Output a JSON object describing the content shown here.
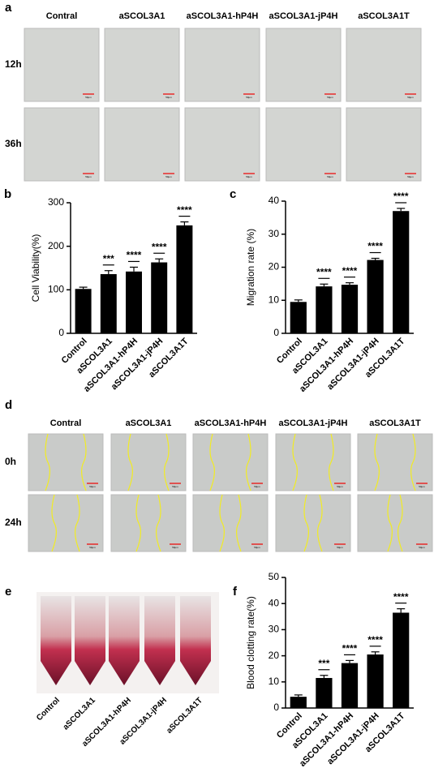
{
  "figure": {
    "panel_a": {
      "label": "a",
      "columns": [
        "Contral",
        "aSCOL3A1",
        "aSCOL3A1-hP4H",
        "aSCOL3A1-jP4H",
        "aSCOL3A1T"
      ],
      "rows": [
        "12h",
        "36h"
      ],
      "scale_bar": "50μm"
    },
    "panel_d": {
      "label": "d",
      "columns": [
        "Contral",
        "aSCOL3A1",
        "aSCOL3A1-hP4H",
        "aSCOL3A1-jP4H",
        "aSCOL3A1T"
      ],
      "rows": [
        "0h",
        "24h"
      ],
      "scale_bar": "50μm"
    },
    "panel_e": {
      "label": "e",
      "categories": [
        "Control",
        "aSCOL3A1",
        "aSCOL3A1-hP4H",
        "aSCOL3A1-jP4H",
        "aSCOL3A1T"
      ]
    }
  },
  "chart_data": [
    {
      "type": "bar",
      "panel": "b",
      "ylabel": "Cell Viability(%)",
      "categories": [
        "Control",
        "aSCOL3A1",
        "aSCOL3A1-hP4H",
        "aSCOL3A1-jP4H",
        "aSCOL3A1T"
      ],
      "values": [
        102,
        136,
        142,
        163,
        248
      ],
      "errors": [
        4,
        8,
        10,
        8,
        8
      ],
      "significance": [
        null,
        "***",
        "****",
        "****",
        "****"
      ],
      "color": "#000000",
      "ylim": [
        0,
        300
      ],
      "yticks": [
        0,
        100,
        200,
        300
      ]
    },
    {
      "type": "bar",
      "panel": "c",
      "ylabel": "Migration rate (%)",
      "categories": [
        "Control",
        "aSCOL3A1",
        "aSCOL3A1-hP4H",
        "aSCOL3A1-jP4H",
        "aSCOL3A1T"
      ],
      "values": [
        9.5,
        14.2,
        14.7,
        22.2,
        37
      ],
      "errors": [
        0.6,
        0.7,
        0.6,
        0.5,
        0.8
      ],
      "significance": [
        null,
        "****",
        "****",
        "****",
        "****"
      ],
      "color": "#000000",
      "ylim": [
        0,
        40
      ],
      "yticks": [
        0,
        10,
        20,
        30,
        40
      ]
    },
    {
      "type": "bar",
      "panel": "f",
      "ylabel": "Blood clotting rate(%)",
      "categories": [
        "Control",
        "aSCOL3A1",
        "aSCOL3A1-hP4H",
        "aSCOL3A1-jP4H",
        "aSCOL3A1T"
      ],
      "values": [
        4.3,
        11.5,
        17.2,
        20.5,
        36.5
      ],
      "errors": [
        0.7,
        1,
        1,
        1,
        1.5
      ],
      "significance": [
        null,
        "***",
        "****",
        "****",
        "****"
      ],
      "color": "#000000",
      "ylim": [
        0,
        50
      ],
      "yticks": [
        0,
        10,
        20,
        30,
        40,
        50
      ]
    }
  ]
}
